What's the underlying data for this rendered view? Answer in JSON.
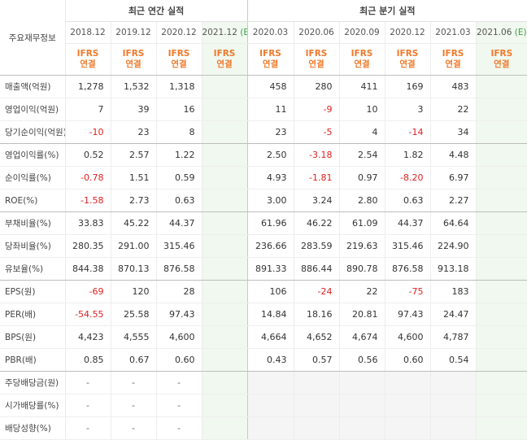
{
  "table": {
    "corner_label": "주요재무정보",
    "annual_title": "최근 연간 실적",
    "quarter_title": "최근 분기 실적",
    "ifrs_line1": "IFRS",
    "ifrs_line2": "연결",
    "est_marker": "(E)",
    "annual_periods": [
      "2018.12",
      "2019.12",
      "2020.12",
      "2021.12"
    ],
    "quarter_periods": [
      "2020.03",
      "2020.06",
      "2020.09",
      "2020.12",
      "2021.03",
      "2021.06"
    ],
    "rows": [
      {
        "label": "매출액(억원)",
        "annual": [
          "1,278",
          "1,532",
          "1,318",
          ""
        ],
        "quarter": [
          "458",
          "280",
          "411",
          "169",
          "483",
          ""
        ]
      },
      {
        "label": "영업이익(억원)",
        "annual": [
          "7",
          "39",
          "16",
          ""
        ],
        "quarter": [
          "11",
          "-9",
          "10",
          "3",
          "22",
          ""
        ]
      },
      {
        "label": "당기순이익(억원)",
        "annual": [
          "-10",
          "23",
          "8",
          ""
        ],
        "quarter": [
          "23",
          "-5",
          "4",
          "-14",
          "34",
          ""
        ]
      },
      {
        "label": "영업이익률(%)",
        "annual": [
          "0.52",
          "2.57",
          "1.22",
          ""
        ],
        "quarter": [
          "2.50",
          "-3.18",
          "2.54",
          "1.82",
          "4.48",
          ""
        ]
      },
      {
        "label": "순이익률(%)",
        "annual": [
          "-0.78",
          "1.51",
          "0.59",
          ""
        ],
        "quarter": [
          "4.93",
          "-1.81",
          "0.97",
          "-8.20",
          "6.97",
          ""
        ]
      },
      {
        "label": "ROE(%)",
        "annual": [
          "-1.58",
          "2.73",
          "0.63",
          ""
        ],
        "quarter": [
          "3.00",
          "3.24",
          "2.80",
          "0.63",
          "2.27",
          ""
        ]
      },
      {
        "label": "부채비율(%)",
        "annual": [
          "33.83",
          "45.22",
          "44.37",
          ""
        ],
        "quarter": [
          "61.96",
          "46.22",
          "61.09",
          "44.37",
          "64.64",
          ""
        ]
      },
      {
        "label": "당좌비율(%)",
        "annual": [
          "280.35",
          "291.00",
          "315.46",
          ""
        ],
        "quarter": [
          "236.66",
          "283.59",
          "219.63",
          "315.46",
          "224.90",
          ""
        ]
      },
      {
        "label": "유보율(%)",
        "annual": [
          "844.38",
          "870.13",
          "876.58",
          ""
        ],
        "quarter": [
          "891.33",
          "886.44",
          "890.78",
          "876.58",
          "913.18",
          ""
        ]
      },
      {
        "label": "EPS(원)",
        "annual": [
          "-69",
          "120",
          "28",
          ""
        ],
        "quarter": [
          "106",
          "-24",
          "22",
          "-75",
          "183",
          ""
        ]
      },
      {
        "label": "PER(배)",
        "annual": [
          "-54.55",
          "25.58",
          "97.43",
          ""
        ],
        "quarter": [
          "14.84",
          "18.16",
          "20.81",
          "97.43",
          "24.47",
          ""
        ]
      },
      {
        "label": "BPS(원)",
        "annual": [
          "4,423",
          "4,555",
          "4,600",
          ""
        ],
        "quarter": [
          "4,664",
          "4,652",
          "4,674",
          "4,600",
          "4,787",
          ""
        ]
      },
      {
        "label": "PBR(배)",
        "annual": [
          "0.85",
          "0.67",
          "0.60",
          ""
        ],
        "quarter": [
          "0.43",
          "0.57",
          "0.56",
          "0.60",
          "0.54",
          ""
        ]
      },
      {
        "label": "주당배당금(원)",
        "annual": [
          "-",
          "-",
          "-",
          ""
        ],
        "quarter": [
          "",
          "",
          "",
          "",
          "",
          ""
        ]
      },
      {
        "label": "시가배당률(%)",
        "annual": [
          "-",
          "-",
          "-",
          ""
        ],
        "quarter": [
          "",
          "",
          "",
          "",
          "",
          ""
        ]
      },
      {
        "label": "배당성향(%)",
        "annual": [
          "-",
          "-",
          "-",
          ""
        ],
        "quarter": [
          "",
          "",
          "",
          "",
          "",
          ""
        ]
      }
    ],
    "colors": {
      "negative": "#e02020",
      "ifrs": "#f07a2c",
      "estimate_bg": "#f1f8ef",
      "estimate_mark": "#3ca04a",
      "dividend_bg": "#f5f5f5"
    }
  }
}
